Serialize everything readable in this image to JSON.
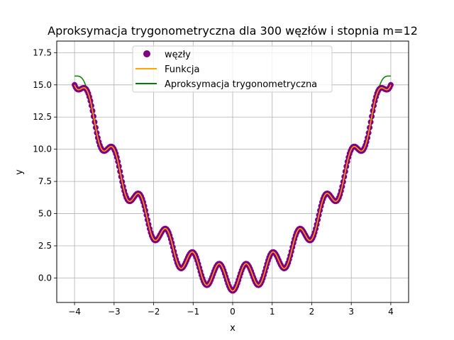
{
  "chart_data": {
    "type": "line",
    "title": "Aproksymacja trygonometryczna dla 300 węzłów i stopnia m=12",
    "xlabel": "x",
    "ylabel": "y",
    "xlim": [
      -4.45,
      4.45
    ],
    "ylim": [
      -1.9,
      18.4
    ],
    "xticks": [
      -4,
      -3,
      -2,
      -1,
      0,
      1,
      2,
      3,
      4
    ],
    "xtick_labels": [
      "−4",
      "−3",
      "−2",
      "−1",
      "0",
      "1",
      "2",
      "3",
      "4"
    ],
    "yticks": [
      0.0,
      2.5,
      5.0,
      7.5,
      10.0,
      12.5,
      15.0,
      17.5
    ],
    "ytick_labels": [
      "0.0",
      "2.5",
      "5.0",
      "7.5",
      "10.0",
      "12.5",
      "15.0",
      "17.5"
    ],
    "grid": true,
    "legend_position": "top-center",
    "series": [
      {
        "name": "węzły",
        "kind": "scatter",
        "color": "#800080",
        "points": 300,
        "x": [
          -4.0,
          4.0
        ],
        "function": "x^2 - cos(3*pi*x)"
      },
      {
        "name": "Funkcja",
        "kind": "line",
        "color": "#FFA500",
        "x": [
          -4.0,
          4.0
        ],
        "function": "x^2 - cos(3*pi*x)"
      },
      {
        "name": "Aproksymacja trygonometryczna",
        "kind": "line",
        "color": "#008000",
        "x": [
          -4.0,
          4.0
        ],
        "degree_m": 12,
        "function": "trigonometric least-squares approximation of x^2 - cos(3*pi*x) on 300 nodes"
      }
    ]
  }
}
